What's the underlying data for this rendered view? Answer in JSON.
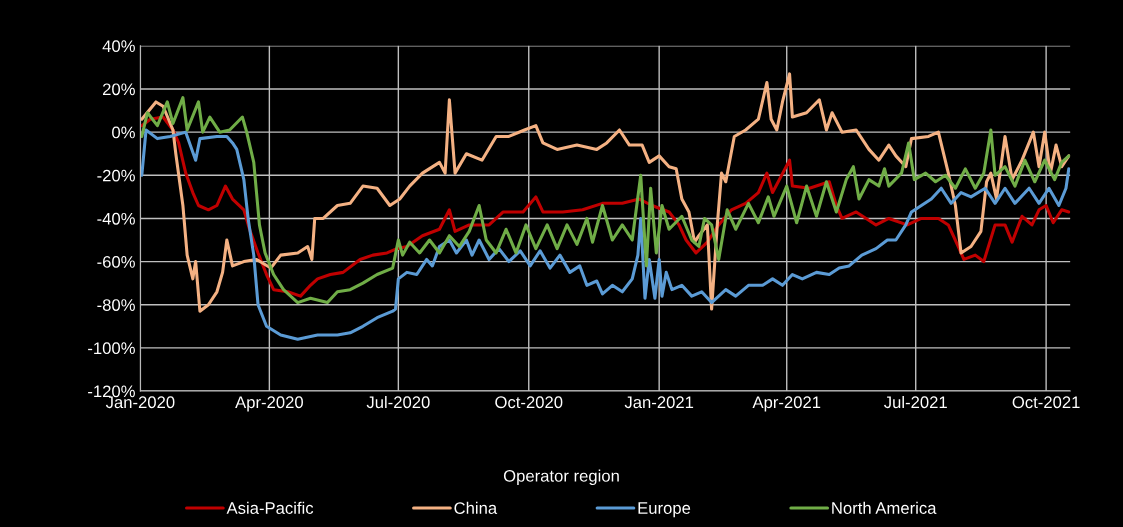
{
  "chart_data": {
    "type": "line",
    "legend_title": "Operator region",
    "legend": "bottom",
    "grid": true,
    "marker": "none",
    "line_style": "solid",
    "xlim": [
      "2020-01-01",
      "2021-10-18"
    ],
    "xticks": [
      {
        "value": "2020-01-01",
        "label": "Jan-2020"
      },
      {
        "value": "2020-04-01",
        "label": "Apr-2020"
      },
      {
        "value": "2020-07-01",
        "label": "Jul-2020"
      },
      {
        "value": "2020-10-01",
        "label": "Oct-2020"
      },
      {
        "value": "2021-01-01",
        "label": "Jan-2021"
      },
      {
        "value": "2021-04-01",
        "label": "Apr-2021"
      },
      {
        "value": "2021-07-01",
        "label": "Jul-2021"
      },
      {
        "value": "2021-10-01",
        "label": "Oct-2021"
      }
    ],
    "ylim": [
      -120,
      40
    ],
    "yticks": [
      {
        "value": -120,
        "label": "-120%"
      },
      {
        "value": -100,
        "label": "-100%"
      },
      {
        "value": -80,
        "label": "-80%"
      },
      {
        "value": -60,
        "label": "-60%"
      },
      {
        "value": -40,
        "label": "-40%"
      },
      {
        "value": -20,
        "label": "-20%"
      },
      {
        "value": 0,
        "label": "0%"
      },
      {
        "value": 20,
        "label": "20%"
      },
      {
        "value": 40,
        "label": "40%"
      }
    ],
    "series": [
      {
        "name": "Asia-Pacific",
        "color": "#c00000",
        "x": [
          "2020-01-02",
          "2020-01-08",
          "2020-01-17",
          "2020-01-24",
          "2020-01-28",
          "2020-02-02",
          "2020-02-07",
          "2020-02-11",
          "2020-02-18",
          "2020-02-24",
          "2020-03-01",
          "2020-03-06",
          "2020-03-14",
          "2020-03-18",
          "2020-03-24",
          "2020-03-30",
          "2020-04-04",
          "2020-04-14",
          "2020-04-23",
          "2020-04-30",
          "2020-05-05",
          "2020-05-14",
          "2020-05-23",
          "2020-06-04",
          "2020-06-13",
          "2020-06-23",
          "2020-06-30",
          "2020-07-07",
          "2020-07-18",
          "2020-07-30",
          "2020-08-06",
          "2020-08-10",
          "2020-08-20",
          "2020-09-03",
          "2020-09-13",
          "2020-09-27",
          "2020-10-06",
          "2020-10-11",
          "2020-10-25",
          "2020-11-08",
          "2020-11-22",
          "2020-12-06",
          "2020-12-18",
          "2020-12-27",
          "2021-01-08",
          "2021-01-15",
          "2021-01-20",
          "2021-01-27",
          "2021-02-04",
          "2021-02-12",
          "2021-02-21",
          "2021-03-03",
          "2021-03-12",
          "2021-03-18",
          "2021-03-22",
          "2021-04-03",
          "2021-04-05",
          "2021-04-17",
          "2021-05-01",
          "2021-05-06",
          "2021-05-10",
          "2021-05-20",
          "2021-06-03",
          "2021-06-12",
          "2021-06-25",
          "2021-07-05",
          "2021-07-17",
          "2021-07-24",
          "2021-07-31",
          "2021-08-04",
          "2021-08-12",
          "2021-08-18",
          "2021-08-26",
          "2021-09-02",
          "2021-09-07",
          "2021-09-14",
          "2021-09-21",
          "2021-09-26",
          "2021-10-01",
          "2021-10-06",
          "2021-10-12",
          "2021-10-17"
        ],
        "values": [
          3,
          6,
          7,
          1,
          -5,
          -19,
          -28,
          -34,
          -36,
          -34,
          -25,
          -31,
          -36,
          -45,
          -56,
          -66,
          -73,
          -74,
          -76,
          -71,
          -68,
          -66,
          -65,
          -59,
          -57,
          -56,
          -54,
          -53,
          -48,
          -45,
          -36,
          -46,
          -43,
          -43,
          -37,
          -37,
          -30,
          -37,
          -37,
          -36,
          -33,
          -33,
          -31,
          -34,
          -37,
          -43,
          -50,
          -56,
          -51,
          -43,
          -36,
          -33,
          -28,
          -19,
          -28,
          -13,
          -25,
          -26,
          -23,
          -34,
          -40,
          -37,
          -43,
          -40,
          -43,
          -40,
          -40,
          -43,
          -53,
          -59,
          -57,
          -60,
          -43,
          -43,
          -51,
          -39,
          -43,
          -36,
          -34,
          -42,
          -36,
          -37
        ]
      },
      {
        "name": "China",
        "color": "#f4b183",
        "x": [
          "2020-01-02",
          "2020-01-12",
          "2020-01-17",
          "2020-01-24",
          "2020-01-26",
          "2020-01-31",
          "2020-02-03",
          "2020-02-07",
          "2020-02-09",
          "2020-02-12",
          "2020-02-18",
          "2020-02-24",
          "2020-02-28",
          "2020-03-02",
          "2020-03-06",
          "2020-03-14",
          "2020-03-23",
          "2020-04-02",
          "2020-04-09",
          "2020-04-21",
          "2020-04-28",
          "2020-05-01",
          "2020-05-03",
          "2020-05-09",
          "2020-05-19",
          "2020-05-28",
          "2020-06-06",
          "2020-06-16",
          "2020-06-25",
          "2020-07-02",
          "2020-07-09",
          "2020-07-18",
          "2020-07-30",
          "2020-08-03",
          "2020-08-06",
          "2020-08-10",
          "2020-08-18",
          "2020-08-29",
          "2020-09-08",
          "2020-09-17",
          "2020-09-28",
          "2020-10-06",
          "2020-10-11",
          "2020-10-21",
          "2020-11-04",
          "2020-11-18",
          "2020-11-25",
          "2020-12-04",
          "2020-12-11",
          "2020-12-20",
          "2020-12-25",
          "2021-01-01",
          "2021-01-08",
          "2021-01-13",
          "2021-01-17",
          "2021-01-22",
          "2021-01-26",
          "2021-01-29",
          "2021-02-04",
          "2021-02-07",
          "2021-02-11",
          "2021-02-14",
          "2021-02-17",
          "2021-02-23",
          "2021-03-03",
          "2021-03-12",
          "2021-03-18",
          "2021-03-21",
          "2021-03-25",
          "2021-03-29",
          "2021-04-03",
          "2021-04-05",
          "2021-04-15",
          "2021-04-24",
          "2021-04-29",
          "2021-05-03",
          "2021-05-10",
          "2021-05-20",
          "2021-05-29",
          "2021-06-05",
          "2021-06-12",
          "2021-06-17",
          "2021-06-24",
          "2021-06-28",
          "2021-07-10",
          "2021-07-17",
          "2021-07-24",
          "2021-07-29",
          "2021-08-02",
          "2021-08-09",
          "2021-08-16",
          "2021-08-20",
          "2021-08-23",
          "2021-08-27",
          "2021-09-02",
          "2021-09-07",
          "2021-09-14",
          "2021-09-22",
          "2021-09-26",
          "2021-09-30",
          "2021-10-04",
          "2021-10-08",
          "2021-10-12",
          "2021-10-17"
        ],
        "values": [
          6,
          14,
          12,
          1,
          -10,
          -34,
          -57,
          -68,
          -60,
          -83,
          -80,
          -74,
          -65,
          -50,
          -62,
          -60,
          -59,
          -63,
          -57,
          -56,
          -53,
          -59,
          -40,
          -40,
          -34,
          -33,
          -25,
          -26,
          -34,
          -31,
          -25,
          -19,
          -14,
          -19,
          15,
          -19,
          -10,
          -13,
          -2,
          -2,
          1,
          3,
          -5,
          -8,
          -6,
          -8,
          -5,
          1,
          -6,
          -6,
          -14,
          -11,
          -16,
          -17,
          -31,
          -37,
          -51,
          -48,
          -43,
          -82,
          -43,
          -19,
          -23,
          -2,
          1,
          6,
          23,
          6,
          1,
          14,
          27,
          7,
          9,
          15,
          1,
          9,
          0,
          1,
          -8,
          -13,
          -6,
          -11,
          -16,
          -3,
          -2,
          0,
          -19,
          -34,
          -56,
          -53,
          -46,
          -23,
          -19,
          -31,
          -2,
          -22,
          -13,
          0,
          -16,
          0,
          -19,
          -6,
          -16,
          -11
        ]
      },
      {
        "name": "Europe",
        "color": "#5b9bd5",
        "x": [
          "2020-01-02",
          "2020-01-05",
          "2020-01-13",
          "2020-01-22",
          "2020-02-02",
          "2020-02-09",
          "2020-02-12",
          "2020-02-24",
          "2020-03-02",
          "2020-03-06",
          "2020-03-09",
          "2020-03-14",
          "2020-03-17",
          "2020-03-21",
          "2020-03-24",
          "2020-03-30",
          "2020-04-09",
          "2020-04-21",
          "2020-05-05",
          "2020-05-19",
          "2020-05-28",
          "2020-06-06",
          "2020-06-16",
          "2020-06-27",
          "2020-06-29",
          "2020-07-01",
          "2020-07-07",
          "2020-07-14",
          "2020-07-21",
          "2020-07-25",
          "2020-07-30",
          "2020-08-06",
          "2020-08-11",
          "2020-08-18",
          "2020-08-22",
          "2020-08-27",
          "2020-09-03",
          "2020-09-10",
          "2020-09-17",
          "2020-09-25",
          "2020-10-02",
          "2020-10-09",
          "2020-10-16",
          "2020-10-23",
          "2020-10-30",
          "2020-11-06",
          "2020-11-11",
          "2020-11-18",
          "2020-11-22",
          "2020-11-29",
          "2020-12-06",
          "2020-12-13",
          "2020-12-17",
          "2020-12-19",
          "2020-12-22",
          "2020-12-25",
          "2020-12-29",
          "2021-01-01",
          "2021-01-03",
          "2021-01-06",
          "2021-01-10",
          "2021-01-17",
          "2021-01-24",
          "2021-01-31",
          "2021-02-07",
          "2021-02-17",
          "2021-02-24",
          "2021-03-05",
          "2021-03-15",
          "2021-03-22",
          "2021-03-29",
          "2021-04-05",
          "2021-04-12",
          "2021-04-22",
          "2021-05-01",
          "2021-05-08",
          "2021-05-15",
          "2021-05-24",
          "2021-06-03",
          "2021-06-11",
          "2021-06-17",
          "2021-06-24",
          "2021-06-28",
          "2021-07-05",
          "2021-07-12",
          "2021-07-19",
          "2021-07-26",
          "2021-08-02",
          "2021-08-09",
          "2021-08-19",
          "2021-08-26",
          "2021-09-02",
          "2021-09-09",
          "2021-09-19",
          "2021-09-26",
          "2021-10-03",
          "2021-10-10",
          "2021-10-15",
          "2021-10-17"
        ],
        "values": [
          -20,
          1,
          -3,
          -2,
          0,
          -13,
          -3,
          -2,
          -2,
          -5,
          -8,
          -22,
          -40,
          -57,
          -80,
          -90,
          -94,
          -96,
          -94,
          -94,
          -93,
          -90,
          -86,
          -83,
          -82,
          -68,
          -65,
          -66,
          -59,
          -62,
          -53,
          -50,
          -56,
          -50,
          -57,
          -50,
          -59,
          -54,
          -60,
          -55,
          -62,
          -55,
          -63,
          -57,
          -65,
          -62,
          -71,
          -69,
          -75,
          -71,
          -74,
          -68,
          -57,
          -40,
          -77,
          -59,
          -77,
          -59,
          -76,
          -65,
          -73,
          -71,
          -76,
          -74,
          -79,
          -73,
          -76,
          -71,
          -71,
          -68,
          -71,
          -66,
          -68,
          -65,
          -66,
          -63,
          -62,
          -57,
          -54,
          -50,
          -50,
          -43,
          -37,
          -34,
          -31,
          -26,
          -33,
          -28,
          -30,
          -26,
          -33,
          -26,
          -33,
          -26,
          -33,
          -26,
          -34,
          -26,
          -17
        ]
      },
      {
        "name": "North America",
        "color": "#70ad47",
        "x": [
          "2020-01-02",
          "2020-01-06",
          "2020-01-13",
          "2020-01-20",
          "2020-01-24",
          "2020-01-31",
          "2020-02-03",
          "2020-02-11",
          "2020-02-14",
          "2020-02-19",
          "2020-02-26",
          "2020-03-04",
          "2020-03-13",
          "2020-03-16",
          "2020-03-21",
          "2020-03-25",
          "2020-03-29",
          "2020-04-04",
          "2020-04-11",
          "2020-04-21",
          "2020-04-30",
          "2020-05-12",
          "2020-05-19",
          "2020-05-28",
          "2020-06-06",
          "2020-06-16",
          "2020-06-27",
          "2020-07-01",
          "2020-07-04",
          "2020-07-09",
          "2020-07-16",
          "2020-07-23",
          "2020-07-30",
          "2020-08-06",
          "2020-08-13",
          "2020-08-20",
          "2020-08-27",
          "2020-09-01",
          "2020-09-08",
          "2020-09-15",
          "2020-09-22",
          "2020-09-29",
          "2020-10-06",
          "2020-10-14",
          "2020-10-21",
          "2020-10-28",
          "2020-11-04",
          "2020-11-11",
          "2020-11-15",
          "2020-11-22",
          "2020-11-29",
          "2020-12-06",
          "2020-12-13",
          "2020-12-19",
          "2020-12-23",
          "2020-12-26",
          "2020-12-30",
          "2021-01-03",
          "2021-01-08",
          "2021-01-17",
          "2021-01-24",
          "2021-01-29",
          "2021-02-02",
          "2021-02-07",
          "2021-02-12",
          "2021-02-18",
          "2021-02-24",
          "2021-03-05",
          "2021-03-12",
          "2021-03-19",
          "2021-03-23",
          "2021-04-01",
          "2021-04-08",
          "2021-04-15",
          "2021-04-22",
          "2021-04-29",
          "2021-05-06",
          "2021-05-13",
          "2021-05-18",
          "2021-05-22",
          "2021-05-29",
          "2021-06-05",
          "2021-06-09",
          "2021-06-12",
          "2021-06-21",
          "2021-06-26",
          "2021-06-30",
          "2021-07-08",
          "2021-07-15",
          "2021-07-22",
          "2021-07-29",
          "2021-08-05",
          "2021-08-12",
          "2021-08-18",
          "2021-08-23",
          "2021-08-26",
          "2021-09-02",
          "2021-09-09",
          "2021-09-16",
          "2021-09-23",
          "2021-09-30",
          "2021-10-07",
          "2021-10-12",
          "2021-10-17"
        ],
        "values": [
          -2,
          9,
          3,
          14,
          4,
          16,
          1,
          14,
          0,
          7,
          0,
          1,
          7,
          0,
          -14,
          -43,
          -56,
          -66,
          -73,
          -79,
          -77,
          -79,
          -74,
          -73,
          -70,
          -66,
          -63,
          -50,
          -57,
          -51,
          -56,
          -50,
          -56,
          -48,
          -53,
          -46,
          -34,
          -50,
          -56,
          -45,
          -56,
          -43,
          -54,
          -43,
          -54,
          -43,
          -52,
          -40,
          -51,
          -34,
          -50,
          -43,
          -50,
          -20,
          -62,
          -26,
          -56,
          -34,
          -45,
          -39,
          -50,
          -53,
          -40,
          -43,
          -59,
          -36,
          -45,
          -33,
          -42,
          -30,
          -39,
          -25,
          -42,
          -25,
          -39,
          -23,
          -37,
          -22,
          -16,
          -31,
          -22,
          -25,
          -17,
          -25,
          -19,
          -5,
          -22,
          -19,
          -23,
          -20,
          -26,
          -17,
          -26,
          -19,
          1,
          -20,
          -16,
          -25,
          -13,
          -23,
          -13,
          -22,
          -14,
          -11
        ]
      }
    ]
  }
}
